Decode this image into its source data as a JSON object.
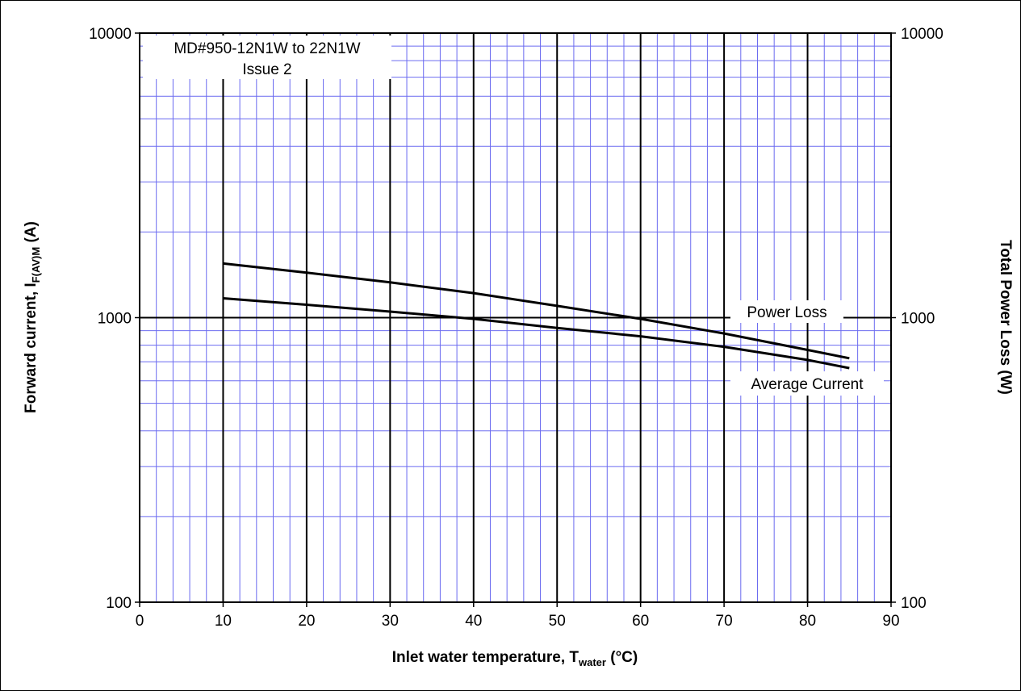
{
  "chart_data": {
    "type": "line",
    "title": "",
    "annotation": {
      "line1": "MD#950-12N1W to 22N1W",
      "line2": "Issue 2"
    },
    "xlabel": {
      "main": "Inlet water temperature, T",
      "sub": "water",
      "tail": " (°C)"
    },
    "ylabel_left": {
      "main": "Forward current, I",
      "sub": "F(AV)M",
      "tail": " (A)"
    },
    "ylabel_right": "Total Power Loss (W)",
    "x_ticks": [
      "0",
      "10",
      "20",
      "30",
      "40",
      "50",
      "60",
      "70",
      "80",
      "90"
    ],
    "y_ticks_left": [
      "100",
      "1000",
      "10000"
    ],
    "y_ticks_right": [
      "100",
      "1000",
      "10000"
    ],
    "xlim": [
      0,
      90
    ],
    "ylim": [
      100,
      10000
    ],
    "yscale": "log",
    "grid": true,
    "colors": {
      "minor_grid": "#6b6bf0",
      "major_grid": "#000000",
      "series": "#000000"
    },
    "series": [
      {
        "name": "Power Loss",
        "x": [
          10,
          20,
          30,
          40,
          50,
          60,
          70,
          80,
          85
        ],
        "y": [
          1550,
          1440,
          1330,
          1220,
          1100,
          990,
          880,
          770,
          720
        ]
      },
      {
        "name": "Average Current",
        "x": [
          10,
          20,
          30,
          40,
          50,
          60,
          70,
          80,
          85
        ],
        "y": [
          1170,
          1110,
          1050,
          990,
          920,
          860,
          790,
          710,
          665
        ]
      }
    ]
  }
}
